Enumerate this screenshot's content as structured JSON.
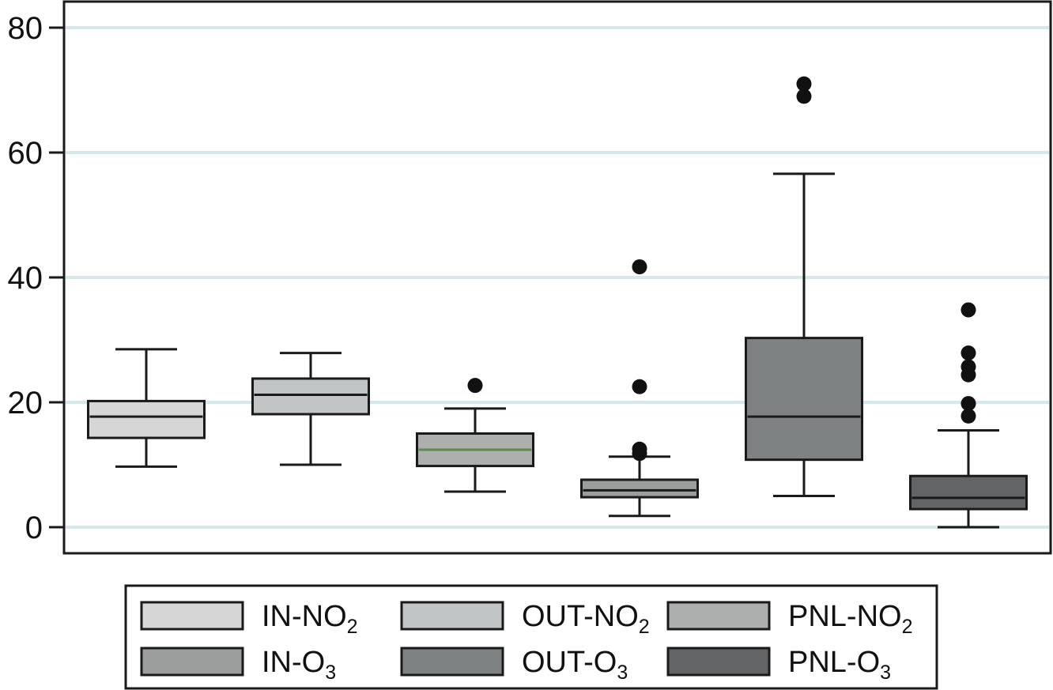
{
  "chart_data": {
    "type": "box",
    "title": "",
    "xlabel": "",
    "ylabel": "",
    "ylim": [
      -4,
      84
    ],
    "yticks": [
      0,
      20,
      40,
      60,
      80
    ],
    "grid": {
      "horizontal": true,
      "color": "#d3e9ea"
    },
    "legend": {
      "placement": "bottom",
      "columns": 3
    },
    "series": [
      {
        "name": "IN-NO",
        "sub": "2",
        "color": "#d6d6d6",
        "median_color": "#1a1a1a",
        "whisker_low": 9.7,
        "q1": 14.3,
        "median": 17.7,
        "q3": 20.2,
        "whisker_high": 28.5,
        "outliers": []
      },
      {
        "name": "OUT-NO",
        "sub": "2",
        "color": "#c2c5c5",
        "median_color": "#1a1a1a",
        "whisker_low": 10.0,
        "q1": 18.1,
        "median": 21.2,
        "q3": 23.8,
        "whisker_high": 27.9,
        "outliers": []
      },
      {
        "name": "PNL-NO",
        "sub": "2",
        "color": "#adafaf",
        "median_color": "#5e8a4a",
        "whisker_low": 5.7,
        "q1": 9.8,
        "median": 12.4,
        "q3": 15.0,
        "whisker_high": 19.0,
        "outliers": [
          22.7
        ]
      },
      {
        "name": "IN-O",
        "sub": "3",
        "color": "#9c9e9e",
        "median_color": "#1a1a1a",
        "whisker_low": 1.8,
        "q1": 4.8,
        "median": 5.9,
        "q3": 7.6,
        "whisker_high": 11.3,
        "outliers": [
          11.8,
          12.5,
          22.5,
          41.7
        ]
      },
      {
        "name": "OUT-O",
        "sub": "3",
        "color": "#7f8282",
        "median_color": "#1a1a1a",
        "whisker_low": 5.0,
        "q1": 10.8,
        "median": 17.7,
        "q3": 30.3,
        "whisker_high": 56.6,
        "outliers": [
          69.0,
          71.0
        ]
      },
      {
        "name": "PNL-O",
        "sub": "3",
        "color": "#626465",
        "median_color": "#1a1a1a",
        "whisker_low": 0.0,
        "q1": 2.9,
        "median": 4.7,
        "q3": 8.2,
        "whisker_high": 15.5,
        "outliers": [
          17.8,
          19.8,
          24.4,
          25.7,
          27.9,
          34.8
        ]
      }
    ]
  }
}
